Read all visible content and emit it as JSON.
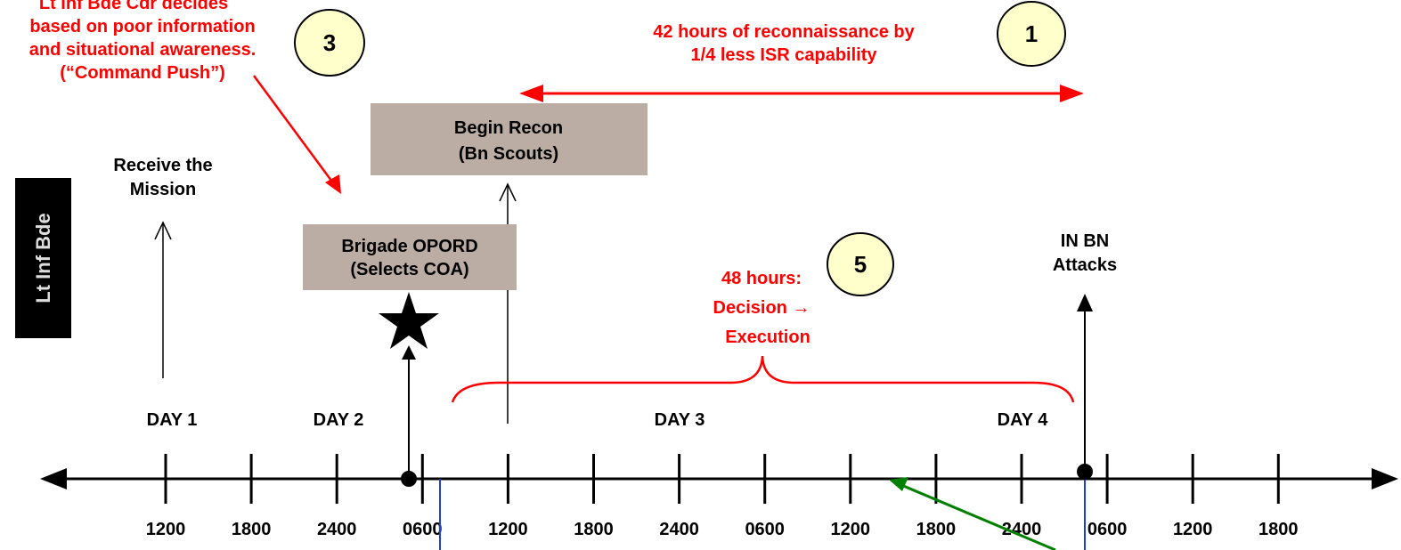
{
  "side_label": "Lt Inf Bde",
  "note_cdr": {
    "lines": [
      "Lt Inf Bde Cdr decides",
      "based on poor information",
      "and situational awareness.",
      "(“Command Push”)"
    ]
  },
  "note_recon": {
    "lines": [
      "42 hours of reconnaissance by",
      "1/4 less ISR capability"
    ]
  },
  "note_decision": {
    "lines": [
      "48 hours:",
      "Decision →",
      "Execution"
    ]
  },
  "callouts": [
    "3",
    "1",
    "5"
  ],
  "events": {
    "receive": {
      "lines": [
        "Receive the",
        "Mission"
      ]
    },
    "opord": {
      "lines": [
        "Brigade OPORD",
        "(Selects COA)"
      ]
    },
    "recon": {
      "lines": [
        "Begin Recon",
        "(Bn Scouts)"
      ]
    },
    "attack": {
      "lines": [
        "IN BN",
        "Attacks"
      ]
    }
  },
  "days": [
    "DAY 1",
    "DAY 2",
    "DAY 3",
    "DAY 4"
  ],
  "time_labels": [
    "1200",
    "1800",
    "2400",
    "0600",
    "1200",
    "1800",
    "2400",
    "0600",
    "1200",
    "1800",
    "2400",
    "0600",
    "1200",
    "1800"
  ]
}
